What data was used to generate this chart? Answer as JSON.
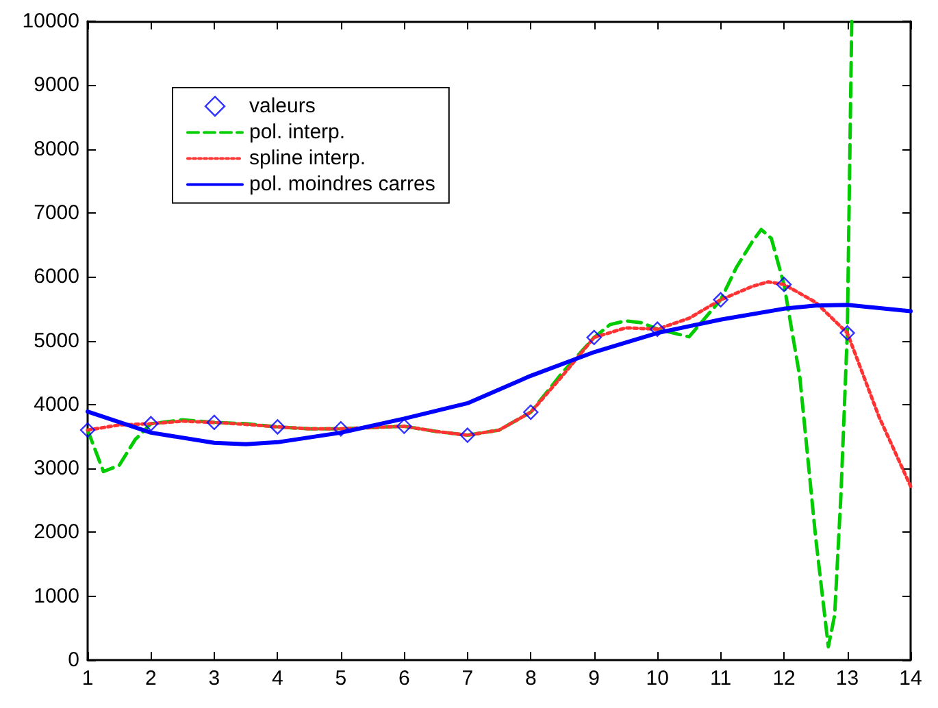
{
  "chart_data": {
    "type": "line",
    "xlim": [
      1,
      14
    ],
    "ylim": [
      0,
      10000
    ],
    "xticks": [
      1,
      2,
      3,
      4,
      5,
      6,
      7,
      8,
      9,
      10,
      11,
      12,
      13,
      14
    ],
    "yticks": [
      0,
      1000,
      2000,
      3000,
      4000,
      5000,
      6000,
      7000,
      8000,
      9000,
      10000
    ],
    "grid": false,
    "legend": "top left",
    "series": [
      {
        "name": "valeurs",
        "type": "scatter",
        "marker": "diamond",
        "color": "#0000ff",
        "x": [
          1,
          2,
          3,
          4,
          5,
          6,
          7,
          8,
          9,
          10,
          11,
          12,
          13
        ],
        "values": [
          3600,
          3700,
          3720,
          3650,
          3620,
          3660,
          3520,
          3880,
          5050,
          5180,
          5640,
          5880,
          5120
        ]
      },
      {
        "name": "pol. interp.",
        "line_style": "dashed",
        "color": "#00cc00",
        "x": [
          1,
          1.25,
          1.5,
          1.75,
          2,
          2.5,
          3,
          3.5,
          4,
          4.5,
          5,
          5.5,
          6,
          6.5,
          7,
          7.5,
          8,
          8.5,
          9,
          9.25,
          9.5,
          9.75,
          10,
          10.5,
          11,
          11.25,
          11.5,
          11.64,
          11.8,
          12,
          12.25,
          12.5,
          12.7,
          12.8,
          12.9,
          13,
          13.07
        ],
        "values": [
          3600,
          2950,
          3050,
          3450,
          3700,
          3760,
          3720,
          3700,
          3650,
          3620,
          3620,
          3640,
          3660,
          3580,
          3520,
          3600,
          3880,
          4500,
          5050,
          5250,
          5310,
          5280,
          5180,
          5060,
          5640,
          6150,
          6550,
          6740,
          6600,
          5880,
          4430,
          1920,
          210,
          700,
          2600,
          5120,
          10000
        ]
      },
      {
        "name": "spline interp.",
        "line_style": "dotted",
        "color": "#ff3333",
        "x": [
          1,
          1.5,
          2,
          2.5,
          3,
          3.5,
          4,
          4.5,
          5,
          5.5,
          6,
          6.5,
          7,
          7.5,
          8,
          8.5,
          9,
          9.5,
          10,
          10.5,
          11,
          11.5,
          11.75,
          12,
          12.5,
          13,
          13.5,
          14
        ],
        "values": [
          3600,
          3680,
          3700,
          3740,
          3720,
          3690,
          3650,
          3620,
          3620,
          3640,
          3660,
          3580,
          3520,
          3600,
          3880,
          4450,
          5050,
          5200,
          5180,
          5350,
          5640,
          5850,
          5920,
          5880,
          5600,
          5120,
          3810,
          2720
        ]
      },
      {
        "name": "pol. moindres carres",
        "line_style": "solid",
        "color": "#0000ff",
        "x": [
          1,
          2,
          3,
          3.5,
          4,
          5,
          6,
          7,
          8,
          9,
          10,
          11,
          12,
          12.5,
          13,
          14
        ],
        "values": [
          3890,
          3560,
          3400,
          3380,
          3410,
          3560,
          3780,
          4020,
          4450,
          4820,
          5120,
          5330,
          5500,
          5550,
          5560,
          5460
        ]
      }
    ]
  }
}
